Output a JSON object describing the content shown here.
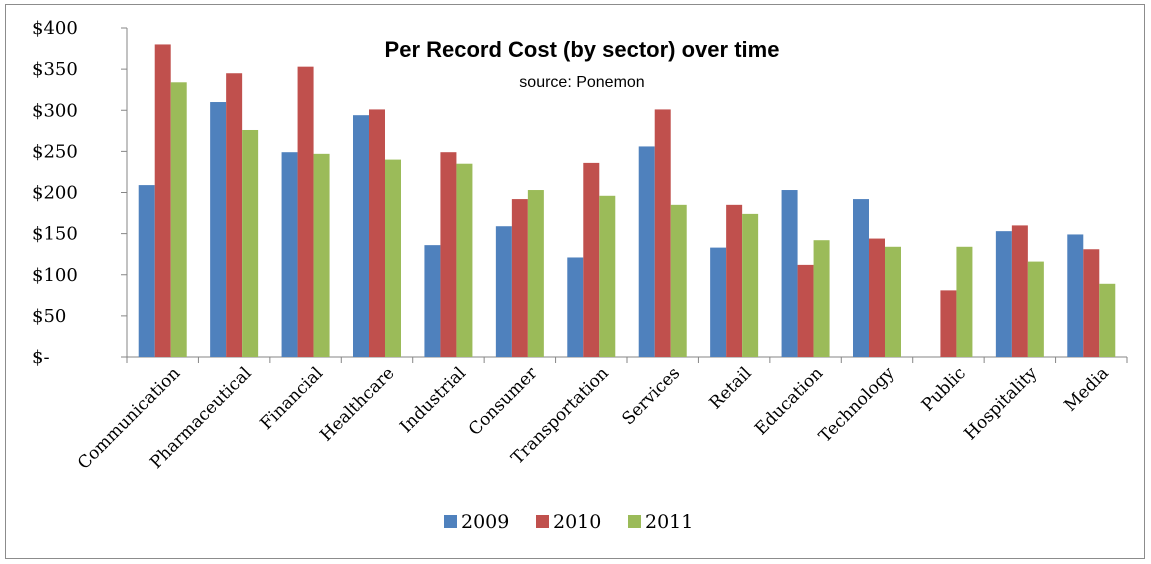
{
  "chart_data": {
    "type": "bar",
    "title": "Per Record Cost (by sector) over time",
    "subtitle": "source: Ponemon",
    "xlabel": "",
    "ylabel": "",
    "ylim": [
      0,
      400
    ],
    "yticks": [
      0,
      50,
      100,
      150,
      200,
      250,
      300,
      350,
      400
    ],
    "ytick_labels": [
      "$-",
      "$50",
      "$100",
      "$150",
      "$200",
      "$250",
      "$300",
      "$350",
      "$400"
    ],
    "grid": false,
    "legend_position": "bottom",
    "categories": [
      "Communication",
      "Pharmaceutical",
      "Financial",
      "Healthcare",
      "Industrial",
      "Consumer",
      "Transportation",
      "Services",
      "Retail",
      "Education",
      "Technology",
      "Public",
      "Hospitality",
      "Media"
    ],
    "series": [
      {
        "name": "2009",
        "color": "#4f81bd",
        "values": [
          209,
          310,
          249,
          294,
          136,
          159,
          121,
          256,
          133,
          203,
          192,
          null,
          153,
          149
        ]
      },
      {
        "name": "2010",
        "color": "#c0504d",
        "values": [
          380,
          345,
          353,
          301,
          249,
          192,
          236,
          301,
          185,
          112,
          144,
          81,
          160,
          131
        ]
      },
      {
        "name": "2011",
        "color": "#9bbb59",
        "values": [
          334,
          276,
          247,
          240,
          235,
          203,
          196,
          185,
          174,
          142,
          134,
          134,
          116,
          89
        ]
      }
    ]
  }
}
